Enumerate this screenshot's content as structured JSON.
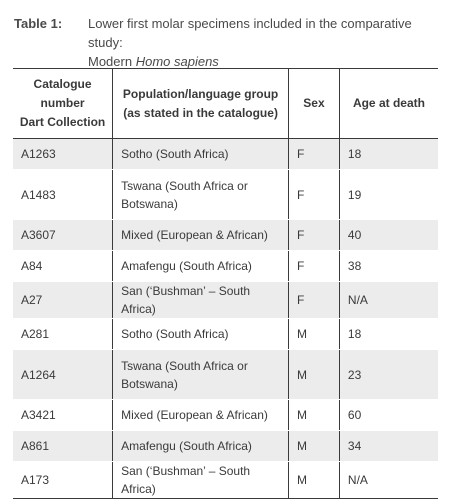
{
  "caption": {
    "label": "Table 1:",
    "text_line1": "Lower first molar specimens included in the comparative study:",
    "text_line2_prefix": "Modern ",
    "text_line2_italic": "Homo sapiens"
  },
  "table": {
    "headers": {
      "catalogue": [
        "Catalogue",
        "number",
        "Dart Collection"
      ],
      "population": [
        "Population/language group",
        "(as stated in the catalogue)"
      ],
      "sex": "Sex",
      "age": "Age at death"
    },
    "rows": [
      {
        "catalogue": "A1263",
        "population": [
          "Sotho (South Africa)"
        ],
        "sex": "F",
        "age": "18"
      },
      {
        "catalogue": "A1483",
        "population": [
          "Tswana (South Africa or",
          "Botswana)"
        ],
        "sex": "F",
        "age": "19"
      },
      {
        "catalogue": "A3607",
        "population": [
          "Mixed (European & African)"
        ],
        "sex": "F",
        "age": "40"
      },
      {
        "catalogue": "A84",
        "population": [
          "Amafengu (South Africa)"
        ],
        "sex": "F",
        "age": "38"
      },
      {
        "catalogue": "A27",
        "population": [
          "San (‘Bushman’ – South Africa)"
        ],
        "sex": "F",
        "age": "N/A"
      },
      {
        "catalogue": "A281",
        "population": [
          "Sotho (South Africa)"
        ],
        "sex": "M",
        "age": "18"
      },
      {
        "catalogue": "A1264",
        "population": [
          "Tswana (South Africa or",
          "Botswana)"
        ],
        "sex": "M",
        "age": "23"
      },
      {
        "catalogue": "A3421",
        "population": [
          "Mixed (European & African)"
        ],
        "sex": "M",
        "age": "60"
      },
      {
        "catalogue": "A861",
        "population": [
          "Amafengu (South Africa)"
        ],
        "sex": "M",
        "age": "34"
      },
      {
        "catalogue": "A173",
        "population": [
          "San (‘Bushman’ – South Africa)"
        ],
        "sex": "M",
        "age": "N/A"
      }
    ]
  }
}
